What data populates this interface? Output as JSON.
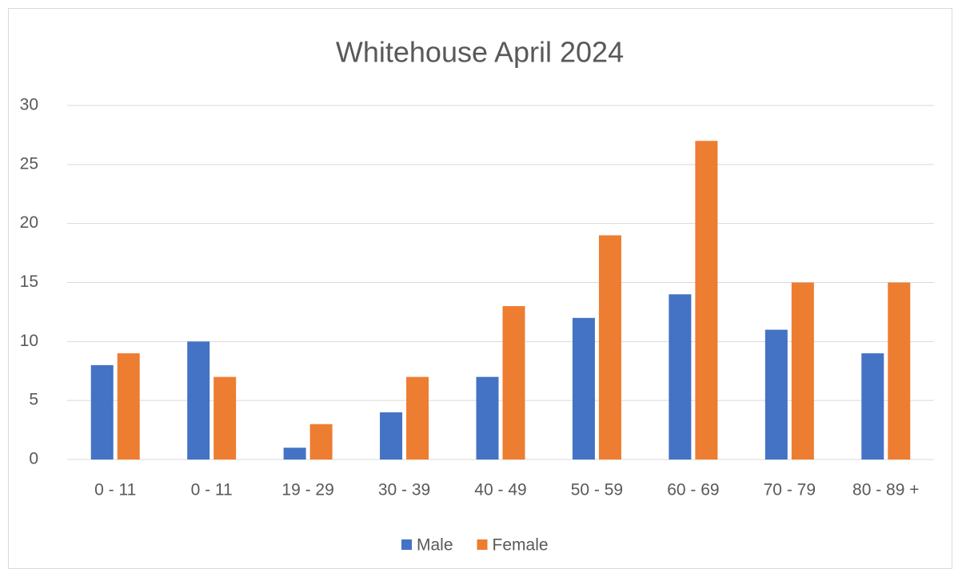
{
  "chart_data": {
    "type": "bar",
    "title": "Whitehouse April 2024",
    "categories": [
      "0 - 11",
      "0 - 11",
      "19 - 29",
      "30 - 39",
      "40 - 49",
      "50 - 59",
      "60 - 69",
      "70 - 79",
      "80 - 89 +"
    ],
    "series": [
      {
        "name": "Male",
        "color": "#4472c4",
        "values": [
          8,
          10,
          1,
          4,
          7,
          12,
          14,
          11,
          9
        ]
      },
      {
        "name": "Female",
        "color": "#ed7d31",
        "values": [
          9,
          7,
          3,
          7,
          13,
          19,
          27,
          15,
          15
        ]
      }
    ],
    "ylim": [
      0,
      30
    ],
    "yticks": [
      0,
      5,
      10,
      15,
      20,
      25,
      30
    ],
    "grid": true,
    "legend": "bottom"
  }
}
